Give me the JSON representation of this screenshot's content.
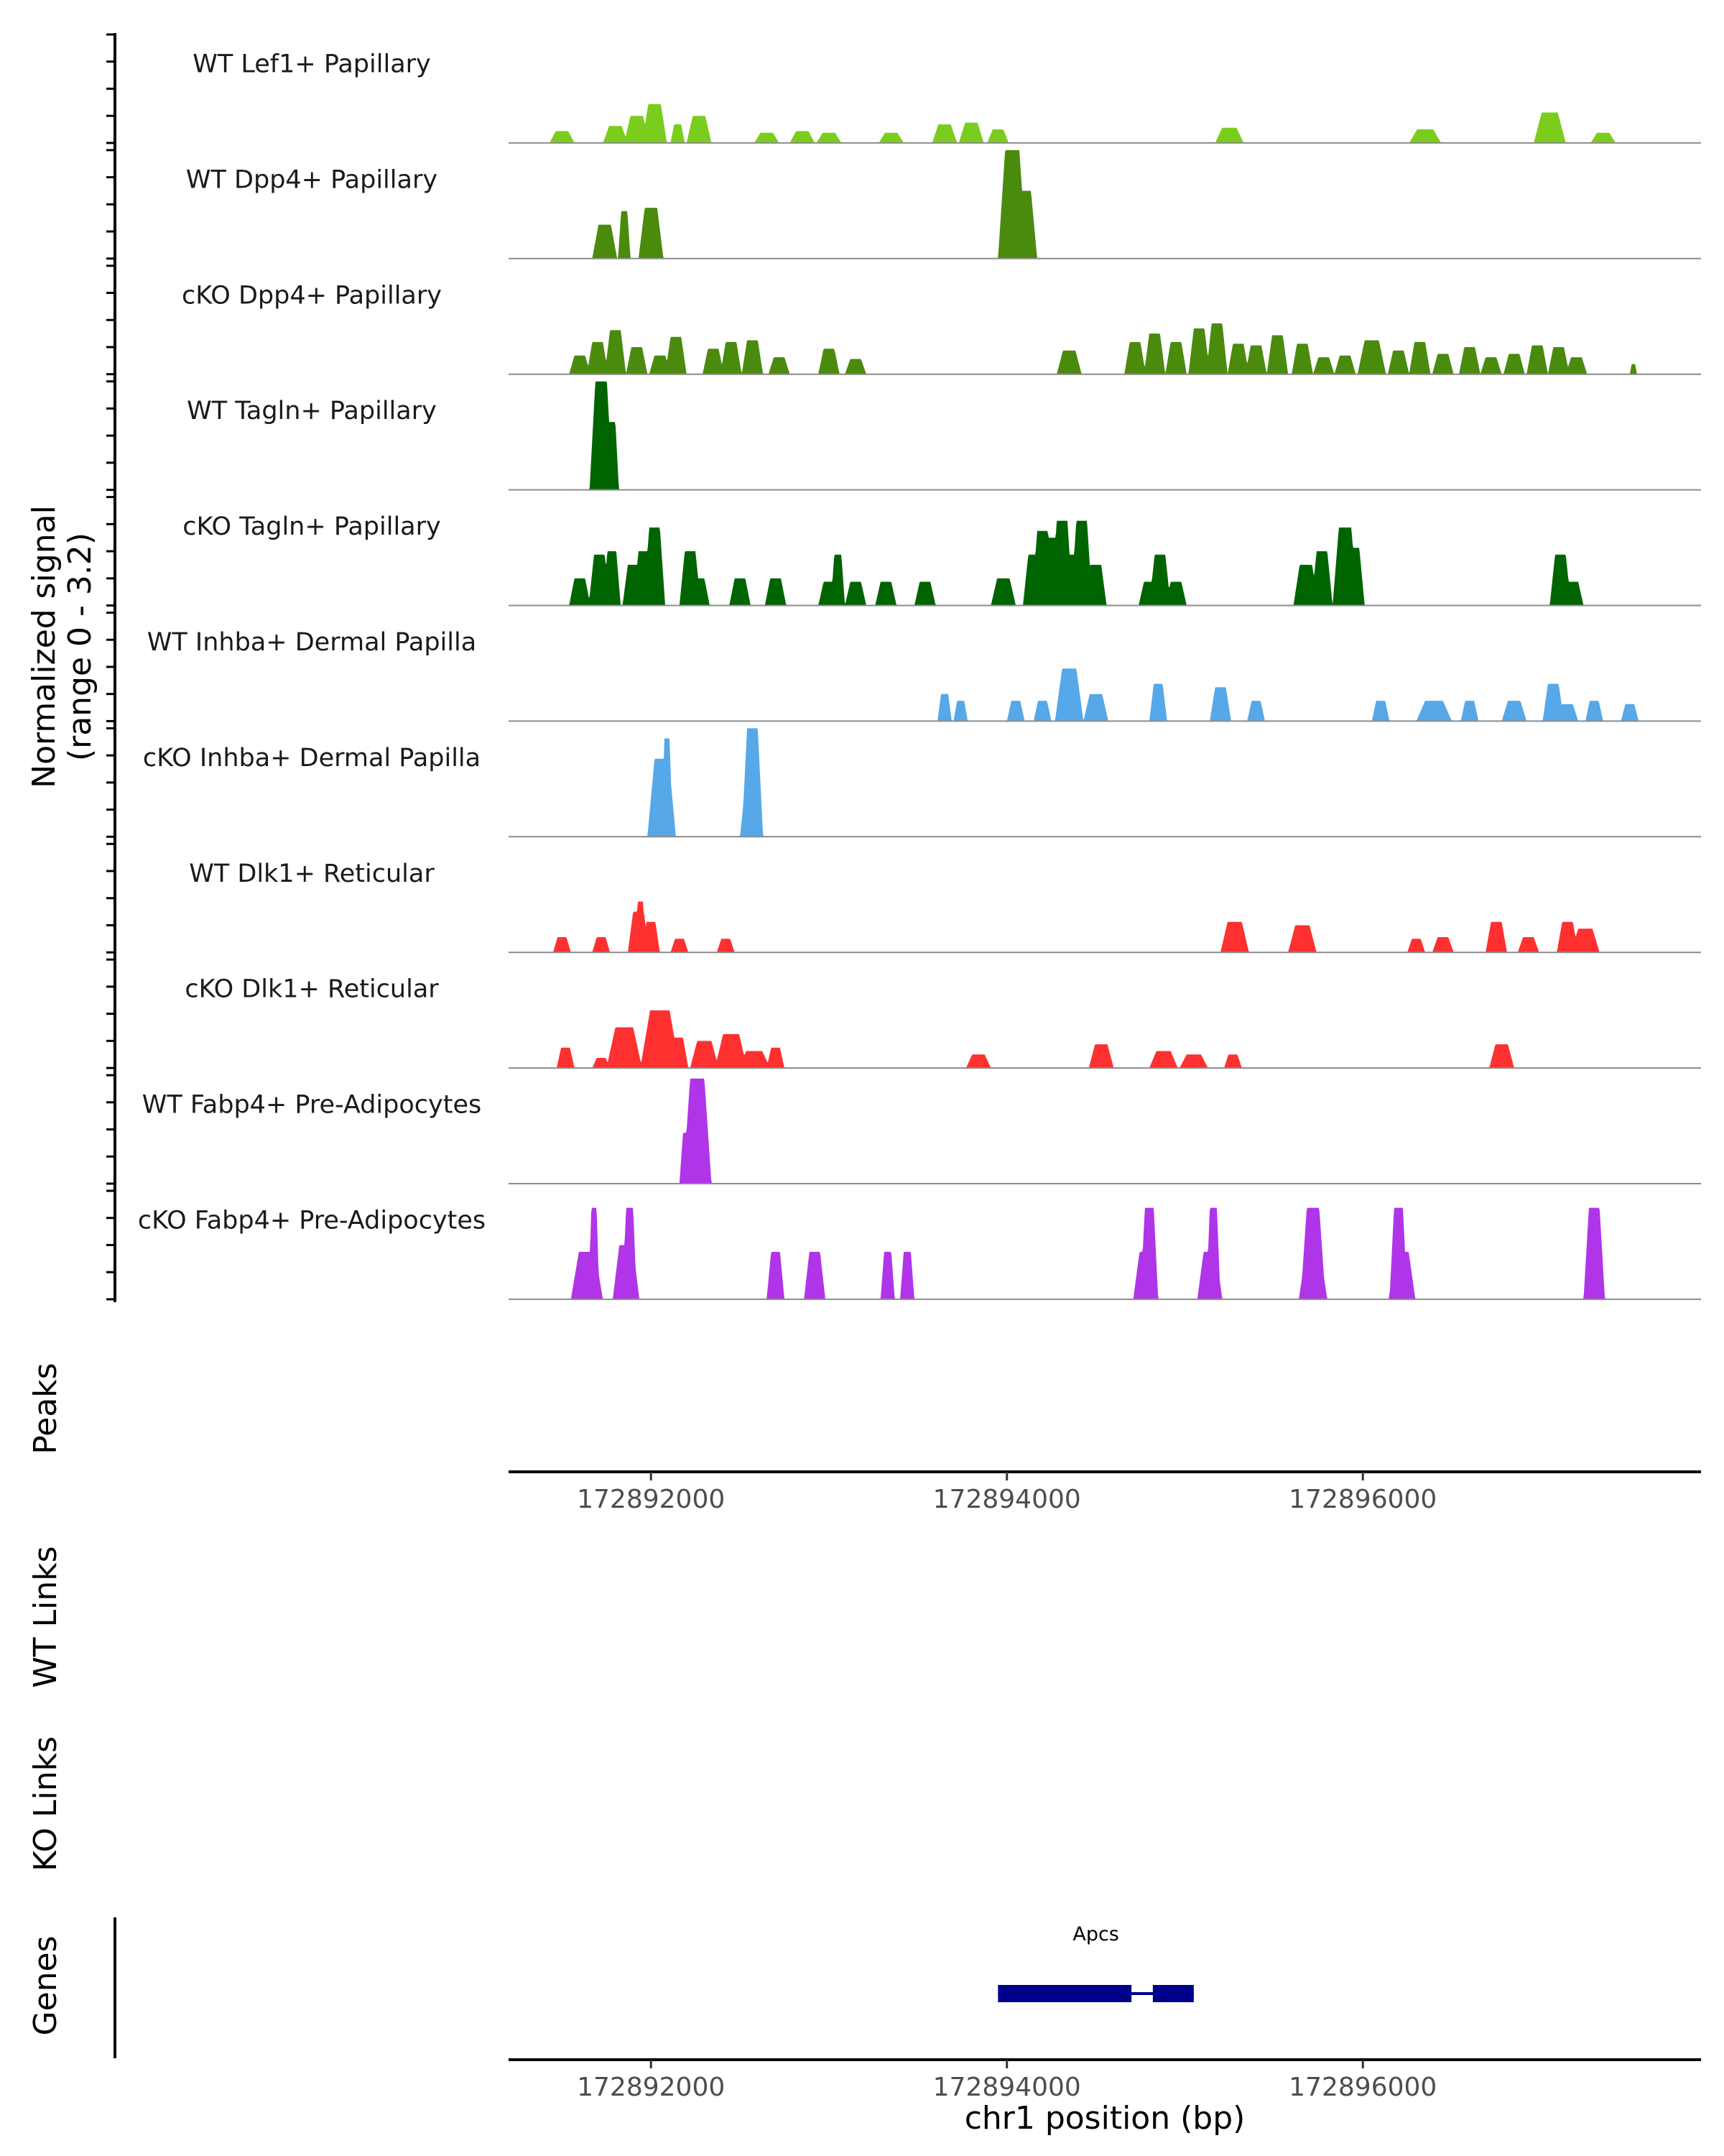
{
  "chart_data": {
    "type": "area",
    "subtype": "genome-coverage-plot",
    "chromosome": "chr1",
    "xlim": [
      172891200,
      172897900
    ],
    "ylim": [
      0,
      3.2
    ],
    "ylabel": "Normalized signal",
    "ylabel_range": "(range 0 - 3.2)",
    "xlabel": "chr1 position (bp)",
    "x_ticks": [
      172892000,
      172894000,
      172896000
    ],
    "x_tick_labels": [
      "172892000",
      "172894000",
      "172896000"
    ],
    "tracks": [
      {
        "name": "WT Lef1+ Papillary",
        "color": "#7acd1c",
        "peaks": [
          [
            172891500,
            0.35,
            140
          ],
          [
            172891800,
            0.5,
            140
          ],
          [
            172891920,
            0.8,
            140
          ],
          [
            172892020,
            1.15,
            140
          ],
          [
            172892150,
            0.55,
            80
          ],
          [
            172892270,
            0.8,
            140
          ],
          [
            172892650,
            0.3,
            140
          ],
          [
            172892850,
            0.35,
            140
          ],
          [
            172893000,
            0.3,
            140
          ],
          [
            172893350,
            0.3,
            140
          ],
          [
            172893650,
            0.55,
            140
          ],
          [
            172893800,
            0.6,
            140
          ],
          [
            172893950,
            0.4,
            120
          ],
          [
            172895250,
            0.45,
            160
          ],
          [
            172896350,
            0.4,
            180
          ],
          [
            172897050,
            0.9,
            180
          ],
          [
            172897350,
            0.3,
            140
          ]
        ]
      },
      {
        "name": "WT Dpp4+ Papillary",
        "color": "#4a8a0d",
        "peaks": [
          [
            172891740,
            1.0,
            140
          ],
          [
            172891850,
            1.4,
            70
          ],
          [
            172892000,
            1.5,
            140
          ],
          [
            172894030,
            3.2,
            160
          ],
          [
            172894100,
            2.0,
            140
          ]
        ]
      },
      {
        "name": "cKO Dpp4+ Papillary",
        "color": "#4a8a0d",
        "peaks": [
          [
            172891600,
            0.55,
            120
          ],
          [
            172891700,
            0.95,
            120
          ],
          [
            172891800,
            1.3,
            120
          ],
          [
            172891920,
            0.8,
            120
          ],
          [
            172892050,
            0.55,
            120
          ],
          [
            172892140,
            1.1,
            120
          ],
          [
            172892350,
            0.75,
            120
          ],
          [
            172892450,
            0.95,
            120
          ],
          [
            172892570,
            1.0,
            120
          ],
          [
            172892720,
            0.5,
            120
          ],
          [
            172893000,
            0.75,
            120
          ],
          [
            172893150,
            0.45,
            120
          ],
          [
            172894350,
            0.7,
            140
          ],
          [
            172894720,
            0.95,
            120
          ],
          [
            172894830,
            1.2,
            120
          ],
          [
            172894950,
            0.95,
            120
          ],
          [
            172895080,
            1.35,
            120
          ],
          [
            172895180,
            1.5,
            120
          ],
          [
            172895300,
            0.9,
            120
          ],
          [
            172895400,
            0.85,
            120
          ],
          [
            172895520,
            1.15,
            120
          ],
          [
            172895660,
            0.9,
            120
          ],
          [
            172895780,
            0.5,
            120
          ],
          [
            172895900,
            0.55,
            120
          ],
          [
            172896050,
            1.0,
            160
          ],
          [
            172896200,
            0.7,
            120
          ],
          [
            172896320,
            0.95,
            120
          ],
          [
            172896450,
            0.6,
            120
          ],
          [
            172896600,
            0.8,
            120
          ],
          [
            172896720,
            0.5,
            120
          ],
          [
            172896850,
            0.6,
            120
          ],
          [
            172896980,
            0.85,
            120
          ],
          [
            172897100,
            0.8,
            120
          ],
          [
            172897200,
            0.5,
            120
          ],
          [
            172897520,
            0.3,
            40
          ]
        ]
      },
      {
        "name": "WT Tagln+ Papillary",
        "color": "#006400",
        "peaks": [
          [
            172891720,
            3.2,
            130
          ],
          [
            172891780,
            2.0,
            80
          ]
        ]
      },
      {
        "name": "cKO Tagln+ Papillary",
        "color": "#006400",
        "peaks": [
          [
            172891600,
            0.8,
            120
          ],
          [
            172891710,
            1.5,
            120
          ],
          [
            172891780,
            1.6,
            100
          ],
          [
            172891900,
            1.2,
            120
          ],
          [
            172891960,
            1.6,
            120
          ],
          [
            172892020,
            2.3,
            120
          ],
          [
            172892220,
            1.6,
            120
          ],
          [
            172892270,
            0.8,
            120
          ],
          [
            172892500,
            0.8,
            120
          ],
          [
            172892700,
            0.8,
            120
          ],
          [
            172893000,
            0.7,
            120
          ],
          [
            172893050,
            1.5,
            80
          ],
          [
            172893150,
            0.7,
            120
          ],
          [
            172893320,
            0.7,
            120
          ],
          [
            172893540,
            0.7,
            120
          ],
          [
            172893980,
            0.8,
            140
          ],
          [
            172894150,
            1.5,
            120
          ],
          [
            172894200,
            2.2,
            120
          ],
          [
            172894260,
            2.0,
            120
          ],
          [
            172894310,
            2.5,
            120
          ],
          [
            172894360,
            1.5,
            120
          ],
          [
            172894420,
            2.5,
            120
          ],
          [
            172894500,
            1.2,
            120
          ],
          [
            172894800,
            0.7,
            120
          ],
          [
            172894860,
            1.5,
            120
          ],
          [
            172894950,
            0.7,
            120
          ],
          [
            172895680,
            1.2,
            140
          ],
          [
            172895770,
            1.6,
            120
          ],
          [
            172895900,
            2.3,
            140
          ],
          [
            172895950,
            1.7,
            120
          ],
          [
            172897110,
            1.5,
            120
          ],
          [
            172897180,
            0.7,
            120
          ]
        ]
      },
      {
        "name": "WT Inhba+ Dermal Papilla",
        "color": "#56a8e8",
        "peaks": [
          [
            172893650,
            0.8,
            80
          ],
          [
            172893740,
            0.6,
            80
          ],
          [
            172894050,
            0.6,
            100
          ],
          [
            172894200,
            0.6,
            100
          ],
          [
            172894350,
            1.55,
            160
          ],
          [
            172894500,
            0.8,
            140
          ],
          [
            172894850,
            1.1,
            100
          ],
          [
            172895200,
            1.0,
            120
          ],
          [
            172895400,
            0.6,
            100
          ],
          [
            172896100,
            0.6,
            100
          ],
          [
            172896400,
            0.6,
            200
          ],
          [
            172896600,
            0.6,
            100
          ],
          [
            172896850,
            0.6,
            140
          ],
          [
            172897070,
            1.1,
            120
          ],
          [
            172897150,
            0.5,
            120
          ],
          [
            172897300,
            0.6,
            100
          ],
          [
            172897500,
            0.5,
            100
          ]
        ]
      },
      {
        "name": "cKO Inhba+ Dermal Papilla",
        "color": "#56a8e8",
        "peaks": [
          [
            172892060,
            2.3,
            160
          ],
          [
            172892090,
            2.9,
            60
          ],
          [
            172892570,
            3.2,
            120
          ],
          [
            172892560,
            1.5,
            120
          ]
        ]
      },
      {
        "name": "WT Dlk1+ Reticular",
        "color": "#ff3030",
        "peaks": [
          [
            172891500,
            0.45,
            100
          ],
          [
            172891720,
            0.45,
            100
          ],
          [
            172891930,
            1.2,
            120
          ],
          [
            172891940,
            1.5,
            60
          ],
          [
            172892000,
            0.9,
            100
          ],
          [
            172892160,
            0.4,
            100
          ],
          [
            172892420,
            0.4,
            100
          ],
          [
            172895280,
            0.9,
            160
          ],
          [
            172895660,
            0.8,
            160
          ],
          [
            172896300,
            0.4,
            100
          ],
          [
            172896450,
            0.45,
            120
          ],
          [
            172896750,
            0.9,
            120
          ],
          [
            172896930,
            0.45,
            120
          ],
          [
            172897150,
            0.9,
            120
          ],
          [
            172897250,
            0.7,
            160
          ]
        ]
      },
      {
        "name": "cKO Dlk1+ Reticular",
        "color": "#ff3030",
        "peaks": [
          [
            172891520,
            0.6,
            100
          ],
          [
            172891720,
            0.3,
            100
          ],
          [
            172891850,
            1.2,
            200
          ],
          [
            172892050,
            1.7,
            220
          ],
          [
            172892150,
            0.9,
            120
          ],
          [
            172892300,
            0.8,
            160
          ],
          [
            172892450,
            1.0,
            180
          ],
          [
            172892580,
            0.5,
            180
          ],
          [
            172892700,
            0.6,
            100
          ],
          [
            172893840,
            0.4,
            140
          ],
          [
            172894530,
            0.7,
            140
          ],
          [
            172894880,
            0.5,
            160
          ],
          [
            172895050,
            0.4,
            160
          ],
          [
            172895270,
            0.4,
            100
          ],
          [
            172896780,
            0.7,
            140
          ]
        ]
      },
      {
        "name": "WT Fabp4+ Pre-Adipocytes",
        "color": "#b035e8",
        "peaks": [
          [
            172892260,
            3.1,
            160
          ],
          [
            172892200,
            1.5,
            80
          ]
        ]
      },
      {
        "name": "cKO Fabp4+ Pre-Adipocytes",
        "color": "#b035e8",
        "peaks": [
          [
            172891640,
            1.4,
            180
          ],
          [
            172891680,
            2.7,
            60
          ],
          [
            172891860,
            1.6,
            150
          ],
          [
            172891880,
            2.7,
            80
          ],
          [
            172892700,
            1.4,
            100
          ],
          [
            172892920,
            1.4,
            120
          ],
          [
            172893330,
            1.4,
            80
          ],
          [
            172893440,
            1.4,
            80
          ],
          [
            172894800,
            2.7,
            100
          ],
          [
            172894780,
            1.4,
            140
          ],
          [
            172895160,
            2.7,
            80
          ],
          [
            172895140,
            1.4,
            140
          ],
          [
            172895720,
            2.7,
            140
          ],
          [
            172895720,
            1.4,
            160
          ],
          [
            172896200,
            2.7,
            100
          ],
          [
            172896220,
            1.4,
            150
          ],
          [
            172897300,
            2.7,
            120
          ],
          [
            172897310,
            1.4,
            100
          ]
        ]
      }
    ],
    "panels": {
      "peaks_label": "Peaks",
      "wt_links_label": "WT Links",
      "ko_links_label": "KO Links",
      "genes_label": "Genes"
    },
    "genes": [
      {
        "name": "Apcs",
        "start": 172893950,
        "end": 172895050,
        "exons": [
          [
            172893950,
            172894700
          ],
          [
            172894820,
            172895050
          ]
        ],
        "color": "#00008b"
      }
    ]
  }
}
